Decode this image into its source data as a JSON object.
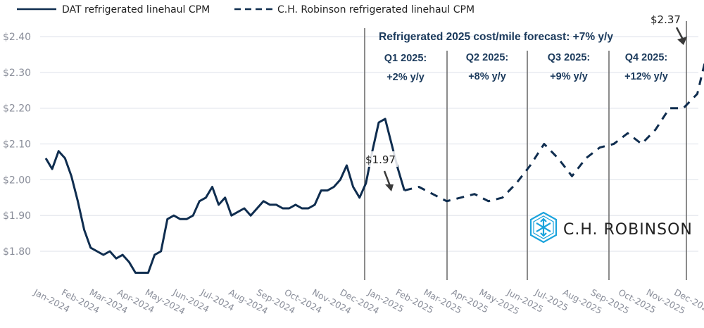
{
  "chart_data": {
    "type": "line",
    "title": "",
    "xlabel": "",
    "ylabel": "",
    "ylim": [
      1.72,
      2.42
    ],
    "yticks": [
      "$1.80",
      "$1.90",
      "$2.00",
      "$2.10",
      "$2.20",
      "$2.30",
      "$2.40"
    ],
    "ytick_values": [
      1.8,
      1.9,
      2.0,
      2.1,
      2.2,
      2.3,
      2.4
    ],
    "grid": "horizontal",
    "legend_position": "top-left",
    "categories": [
      "Jan-2024",
      "Feb-2024",
      "Mar-2024",
      "Apr-2024",
      "May-2024",
      "Jun-2024",
      "Jul-2024",
      "Aug-2024",
      "Sep-2024",
      "Oct-2024",
      "Nov-2024",
      "Dec-2024",
      "Jan-2025",
      "Feb-2025",
      "Mar-2025",
      "Apr-2025",
      "May-2025",
      "Jun-2025",
      "Jul-2025",
      "Aug-2025",
      "Sep-2025",
      "Oct-2025",
      "Nov-2025",
      "Dec-2025"
    ],
    "series": [
      {
        "name": "DAT refrigerated linehaul CPM",
        "style": "solid",
        "color": "#0f2d4f",
        "x_months": [
          0,
          0.23,
          0.46,
          0.69,
          0.92,
          1.15,
          1.38,
          1.61,
          1.84,
          2.07,
          2.3,
          2.53,
          2.76,
          2.99,
          3.22,
          3.45,
          3.68,
          3.91,
          4.14,
          4.37,
          4.6,
          4.83,
          5.06,
          5.29,
          5.52,
          5.75,
          5.98,
          6.21,
          6.44,
          6.67,
          6.9,
          7.13,
          7.36,
          7.59,
          7.82,
          8.05,
          8.28,
          8.51,
          8.74,
          8.97,
          9.2,
          9.43,
          9.66,
          9.89,
          10.12,
          10.35,
          10.58,
          10.81,
          11.04,
          11.27,
          11.5,
          11.73,
          11.96,
          12.19,
          12.42,
          12.65,
          12.88
        ],
        "values": [
          2.06,
          2.03,
          2.08,
          2.06,
          2.01,
          1.94,
          1.86,
          1.81,
          1.8,
          1.79,
          1.8,
          1.78,
          1.79,
          1.77,
          1.74,
          1.74,
          1.74,
          1.79,
          1.8,
          1.89,
          1.9,
          1.89,
          1.89,
          1.9,
          1.94,
          1.95,
          1.98,
          1.93,
          1.95,
          1.9,
          1.91,
          1.92,
          1.9,
          1.92,
          1.94,
          1.93,
          1.93,
          1.92,
          1.92,
          1.93,
          1.92,
          1.92,
          1.93,
          1.97,
          1.97,
          1.98,
          2.0,
          2.04,
          1.98,
          1.95,
          1.99,
          2.08,
          2.16,
          2.17,
          2.1,
          2.03,
          1.97
        ]
      },
      {
        "name": "C.H. Robinson refrigerated linehaul CPM",
        "style": "dashed",
        "color": "#0f2d4f",
        "x_months": [
          12.88,
          13.4,
          13.9,
          14.4,
          14.9,
          15.4,
          15.9,
          16.4,
          16.9,
          17.4,
          17.9,
          18.4,
          18.9,
          19.4,
          19.9,
          20.4,
          20.9,
          21.4,
          21.9,
          22.4,
          22.9,
          23.4,
          23.8
        ],
        "values": [
          1.97,
          1.98,
          1.96,
          1.94,
          1.95,
          1.96,
          1.94,
          1.95,
          1.99,
          2.04,
          2.1,
          2.06,
          2.01,
          2.06,
          2.09,
          2.1,
          2.13,
          2.1,
          2.14,
          2.2,
          2.2,
          2.24,
          2.37
        ]
      }
    ],
    "annotations": {
      "forecast_title": "Refrigerated 2025 cost/mile forecast: +7% y/y",
      "quarters": [
        {
          "label": "Q1 2025:",
          "change": "+2% y/y"
        },
        {
          "label": "Q2 2025:",
          "change": "+8% y/y"
        },
        {
          "label": "Q3 2025:",
          "change": "+9% y/y"
        },
        {
          "label": "Q4 2025:",
          "change": "+12% y/y"
        }
      ],
      "callout_start": "$1.97",
      "callout_end": "$2.37"
    }
  },
  "legend": {
    "solid_label": "DAT refrigerated linehaul CPM",
    "dashed_label": "C.H. Robinson refrigerated linehaul CPM"
  },
  "logo": {
    "text": "C.H. ROBINSON",
    "color": "#1aa3dc"
  }
}
